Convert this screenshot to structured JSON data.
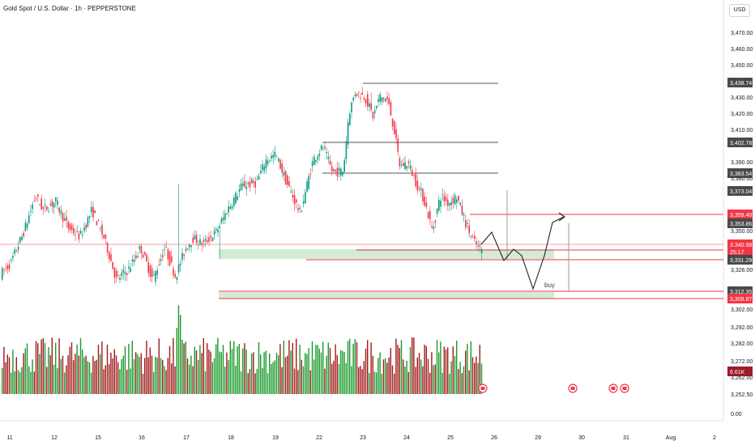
{
  "chart_data": {
    "type": "candlestick",
    "title": "Gold Spot / U.S. Dollar · 1h · PEPPERSTONE",
    "currency": "USD",
    "y_axis_labels": [
      "3,470.00",
      "3,460.00",
      "3,450.00",
      "3,430.00",
      "3,420.00",
      "3,410.00",
      "3,390.00",
      "3,380.00",
      "3,350.00",
      "3,326.00",
      "3,302.00",
      "3,292.00",
      "3,282.00",
      "3,272.00",
      "3,262.00",
      "3,252.50",
      "0.00"
    ],
    "price_tags": [
      {
        "text": "3,438.74",
        "color": "#4a4a4a"
      },
      {
        "text": "3,402.78",
        "color": "#4a4a4a"
      },
      {
        "text": "3,383.54",
        "color": "#4a4a4a"
      },
      {
        "text": "3,373.04",
        "color": "#4a4a4a"
      },
      {
        "text": "3,359.40",
        "color": "#f23645"
      },
      {
        "text": "3,353.86",
        "color": "#4a4a4a"
      },
      {
        "text": "3,340.98",
        "color": "#f23645"
      },
      {
        "text": "25:17",
        "color": "#f23645"
      },
      {
        "text": "3,331.29",
        "color": "#4a4a4a"
      },
      {
        "text": "3,312.35",
        "color": "#4a4a4a"
      },
      {
        "text": "3,308.87",
        "color": "#f23645"
      },
      {
        "text": "6.61K",
        "color": "#9d1b2a"
      }
    ],
    "x_tick_labels": [
      "11",
      "12",
      "15",
      "16",
      "17",
      "18",
      "19",
      "22",
      "23",
      "24",
      "25",
      "26",
      "29",
      "30",
      "31",
      "Aug",
      "2"
    ],
    "annotation": "buy",
    "colors": {
      "up": "#089981",
      "down": "#f23645",
      "vol_up": "#1b9a2c",
      "vol_down": "#a01a1a",
      "zone": "#c8e6c9"
    }
  }
}
